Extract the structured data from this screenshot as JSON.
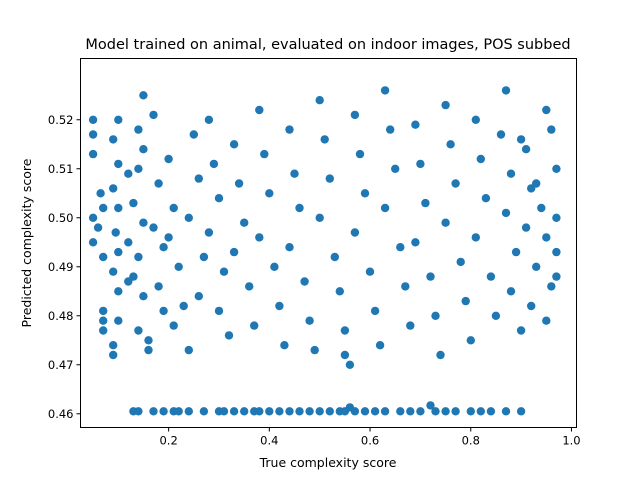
{
  "chart_data": {
    "type": "scatter",
    "title": "Model trained on animal, evaluated on indoor images, POS subbed",
    "xlabel": "True complexity score",
    "ylabel": "Predicted complexity score",
    "xlim": [
      0.025,
      1.01
    ],
    "ylim": [
      0.4572,
      0.5325
    ],
    "xticks": [
      0.2,
      0.4,
      0.6,
      0.8,
      1.0
    ],
    "xtick_labels": [
      "0.2",
      "0.4",
      "0.6",
      "0.8",
      "1.0"
    ],
    "yticks": [
      0.46,
      0.47,
      0.48,
      0.49,
      0.5,
      0.51,
      0.52
    ],
    "ytick_labels": [
      "0.46",
      "0.47",
      "0.48",
      "0.49",
      "0.50",
      "0.51",
      "0.52"
    ],
    "grid": false,
    "legend": "none",
    "marker_color": "#1f77b4",
    "series": [
      {
        "points": [
          [
            0.05,
            0.52
          ],
          [
            0.05,
            0.517
          ],
          [
            0.05,
            0.513
          ],
          [
            0.05,
            0.5
          ],
          [
            0.05,
            0.495
          ],
          [
            0.06,
            0.498
          ],
          [
            0.065,
            0.505
          ],
          [
            0.07,
            0.492
          ],
          [
            0.07,
            0.502
          ],
          [
            0.1,
            0.52
          ],
          [
            0.09,
            0.516
          ],
          [
            0.1,
            0.511
          ],
          [
            0.09,
            0.506
          ],
          [
            0.1,
            0.502
          ],
          [
            0.095,
            0.497
          ],
          [
            0.1,
            0.493
          ],
          [
            0.09,
            0.489
          ],
          [
            0.1,
            0.485
          ],
          [
            0.07,
            0.481
          ],
          [
            0.07,
            0.479
          ],
          [
            0.07,
            0.477
          ],
          [
            0.09,
            0.474
          ],
          [
            0.09,
            0.472
          ],
          [
            0.1,
            0.479
          ],
          [
            0.12,
            0.509
          ],
          [
            0.12,
            0.495
          ],
          [
            0.12,
            0.487
          ],
          [
            0.15,
            0.525
          ],
          [
            0.14,
            0.518
          ],
          [
            0.15,
            0.514
          ],
          [
            0.14,
            0.51
          ],
          [
            0.13,
            0.503
          ],
          [
            0.15,
            0.499
          ],
          [
            0.14,
            0.492
          ],
          [
            0.13,
            0.488
          ],
          [
            0.15,
            0.484
          ],
          [
            0.14,
            0.477
          ],
          [
            0.16,
            0.473
          ],
          [
            0.16,
            0.475
          ],
          [
            0.17,
            0.521
          ],
          [
            0.18,
            0.507
          ],
          [
            0.17,
            0.498
          ],
          [
            0.19,
            0.494
          ],
          [
            0.18,
            0.486
          ],
          [
            0.19,
            0.481
          ],
          [
            0.2,
            0.512
          ],
          [
            0.21,
            0.502
          ],
          [
            0.2,
            0.496
          ],
          [
            0.22,
            0.49
          ],
          [
            0.21,
            0.478
          ],
          [
            0.23,
            0.482
          ],
          [
            0.24,
            0.473
          ],
          [
            0.25,
            0.517
          ],
          [
            0.26,
            0.508
          ],
          [
            0.24,
            0.5
          ],
          [
            0.27,
            0.492
          ],
          [
            0.26,
            0.484
          ],
          [
            0.28,
            0.52
          ],
          [
            0.29,
            0.511
          ],
          [
            0.3,
            0.504
          ],
          [
            0.28,
            0.497
          ],
          [
            0.31,
            0.489
          ],
          [
            0.3,
            0.481
          ],
          [
            0.32,
            0.476
          ],
          [
            0.33,
            0.515
          ],
          [
            0.34,
            0.507
          ],
          [
            0.35,
            0.499
          ],
          [
            0.33,
            0.493
          ],
          [
            0.36,
            0.486
          ],
          [
            0.37,
            0.478
          ],
          [
            0.38,
            0.522
          ],
          [
            0.39,
            0.513
          ],
          [
            0.4,
            0.505
          ],
          [
            0.38,
            0.496
          ],
          [
            0.41,
            0.49
          ],
          [
            0.42,
            0.482
          ],
          [
            0.43,
            0.474
          ],
          [
            0.44,
            0.518
          ],
          [
            0.45,
            0.509
          ],
          [
            0.46,
            0.502
          ],
          [
            0.44,
            0.494
          ],
          [
            0.47,
            0.487
          ],
          [
            0.48,
            0.479
          ],
          [
            0.49,
            0.473
          ],
          [
            0.5,
            0.524
          ],
          [
            0.51,
            0.516
          ],
          [
            0.52,
            0.508
          ],
          [
            0.5,
            0.5
          ],
          [
            0.53,
            0.492
          ],
          [
            0.54,
            0.485
          ],
          [
            0.55,
            0.477
          ],
          [
            0.55,
            0.472
          ],
          [
            0.56,
            0.47
          ],
          [
            0.57,
            0.521
          ],
          [
            0.58,
            0.513
          ],
          [
            0.59,
            0.505
          ],
          [
            0.57,
            0.497
          ],
          [
            0.6,
            0.489
          ],
          [
            0.61,
            0.481
          ],
          [
            0.62,
            0.474
          ],
          [
            0.63,
            0.526
          ],
          [
            0.64,
            0.518
          ],
          [
            0.65,
            0.51
          ],
          [
            0.63,
            0.502
          ],
          [
            0.66,
            0.494
          ],
          [
            0.67,
            0.486
          ],
          [
            0.68,
            0.478
          ],
          [
            0.69,
            0.519
          ],
          [
            0.7,
            0.511
          ],
          [
            0.71,
            0.503
          ],
          [
            0.69,
            0.495
          ],
          [
            0.72,
            0.488
          ],
          [
            0.73,
            0.48
          ],
          [
            0.74,
            0.472
          ],
          [
            0.75,
            0.523
          ],
          [
            0.76,
            0.515
          ],
          [
            0.77,
            0.507
          ],
          [
            0.75,
            0.499
          ],
          [
            0.78,
            0.491
          ],
          [
            0.79,
            0.483
          ],
          [
            0.8,
            0.475
          ],
          [
            0.81,
            0.52
          ],
          [
            0.82,
            0.512
          ],
          [
            0.83,
            0.504
          ],
          [
            0.81,
            0.496
          ],
          [
            0.84,
            0.488
          ],
          [
            0.85,
            0.48
          ],
          [
            0.87,
            0.526
          ],
          [
            0.86,
            0.517
          ],
          [
            0.88,
            0.509
          ],
          [
            0.87,
            0.501
          ],
          [
            0.89,
            0.493
          ],
          [
            0.88,
            0.485
          ],
          [
            0.9,
            0.477
          ],
          [
            0.91,
            0.514
          ],
          [
            0.92,
            0.506
          ],
          [
            0.91,
            0.498
          ],
          [
            0.93,
            0.49
          ],
          [
            0.92,
            0.482
          ],
          [
            0.94,
            0.502
          ],
          [
            0.95,
            0.496
          ],
          [
            0.96,
            0.486
          ],
          [
            0.95,
            0.479
          ],
          [
            0.96,
            0.518
          ],
          [
            0.97,
            0.51
          ],
          [
            0.97,
            0.5
          ],
          [
            0.97,
            0.493
          ],
          [
            0.97,
            0.488
          ],
          [
            0.95,
            0.522
          ],
          [
            0.93,
            0.507
          ],
          [
            0.9,
            0.516
          ],
          [
            0.13,
            0.4605
          ],
          [
            0.14,
            0.4605
          ],
          [
            0.17,
            0.4605
          ],
          [
            0.19,
            0.4605
          ],
          [
            0.21,
            0.4605
          ],
          [
            0.22,
            0.4605
          ],
          [
            0.24,
            0.4605
          ],
          [
            0.27,
            0.4605
          ],
          [
            0.3,
            0.4605
          ],
          [
            0.31,
            0.4605
          ],
          [
            0.33,
            0.4605
          ],
          [
            0.35,
            0.4605
          ],
          [
            0.37,
            0.4605
          ],
          [
            0.38,
            0.4605
          ],
          [
            0.4,
            0.4605
          ],
          [
            0.42,
            0.4605
          ],
          [
            0.44,
            0.4605
          ],
          [
            0.46,
            0.4605
          ],
          [
            0.48,
            0.4605
          ],
          [
            0.5,
            0.4605
          ],
          [
            0.52,
            0.4605
          ],
          [
            0.54,
            0.4605
          ],
          [
            0.55,
            0.4605
          ],
          [
            0.56,
            0.4613
          ],
          [
            0.57,
            0.4605
          ],
          [
            0.59,
            0.4605
          ],
          [
            0.61,
            0.4605
          ],
          [
            0.63,
            0.4605
          ],
          [
            0.66,
            0.4605
          ],
          [
            0.68,
            0.4605
          ],
          [
            0.7,
            0.4605
          ],
          [
            0.72,
            0.4617
          ],
          [
            0.73,
            0.4605
          ],
          [
            0.75,
            0.4605
          ],
          [
            0.77,
            0.4605
          ],
          [
            0.8,
            0.4605
          ],
          [
            0.82,
            0.4605
          ],
          [
            0.84,
            0.4605
          ],
          [
            0.87,
            0.4605
          ],
          [
            0.9,
            0.4605
          ]
        ]
      }
    ]
  }
}
